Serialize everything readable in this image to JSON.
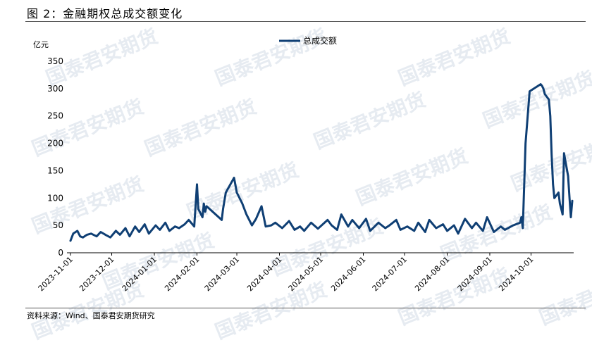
{
  "figure": {
    "title": "图 2：金融期权总成交额变化",
    "source": "资料来源：Wind、国泰君安期货研究"
  },
  "watermark": {
    "text": "国泰君安期货"
  },
  "colors": {
    "line": "#0f3f74",
    "axis": "#000000",
    "rule": "#555555",
    "watermark": "#e6ebf1"
  },
  "chart_data": {
    "type": "line",
    "ylabel": "亿元",
    "ylim": [
      0,
      350
    ],
    "yticks": [
      0,
      50,
      100,
      150,
      200,
      250,
      300,
      350
    ],
    "grid": false,
    "legend_position": "top-center",
    "x_tick_labels": [
      "2023-11-01",
      "2023-12-01",
      "2024-01-01",
      "2024-02-01",
      "2024-03-01",
      "2024-04-01",
      "2024-05-01",
      "2024-06-01",
      "2024-07-01",
      "2024-08-01",
      "2024-09-01",
      "2024-10-01"
    ],
    "series": [
      {
        "name": "总成交额",
        "x": [
          "2023-11-01",
          "2023-11-03",
          "2023-11-06",
          "2023-11-08",
          "2023-11-10",
          "2023-11-13",
          "2023-11-16",
          "2023-11-20",
          "2023-11-23",
          "2023-11-27",
          "2023-11-30",
          "2023-12-04",
          "2023-12-07",
          "2023-12-11",
          "2023-12-14",
          "2023-12-18",
          "2023-12-21",
          "2023-12-25",
          "2023-12-28",
          "2024-01-02",
          "2024-01-05",
          "2024-01-09",
          "2024-01-12",
          "2024-01-16",
          "2024-01-19",
          "2024-01-23",
          "2024-01-26",
          "2024-01-30",
          "2024-02-01",
          "2024-02-02",
          "2024-02-05",
          "2024-02-06",
          "2024-02-07",
          "2024-02-08",
          "2024-02-19",
          "2024-02-20",
          "2024-02-22",
          "2024-02-26",
          "2024-02-28",
          "2024-03-01",
          "2024-03-05",
          "2024-03-08",
          "2024-03-12",
          "2024-03-15",
          "2024-03-19",
          "2024-03-22",
          "2024-03-26",
          "2024-03-29",
          "2024-04-03",
          "2024-04-08",
          "2024-04-12",
          "2024-04-16",
          "2024-04-19",
          "2024-04-24",
          "2024-04-29",
          "2024-05-06",
          "2024-05-09",
          "2024-05-13",
          "2024-05-16",
          "2024-05-21",
          "2024-05-24",
          "2024-05-29",
          "2024-06-03",
          "2024-06-06",
          "2024-06-12",
          "2024-06-17",
          "2024-06-20",
          "2024-06-25",
          "2024-06-28",
          "2024-07-03",
          "2024-07-08",
          "2024-07-11",
          "2024-07-16",
          "2024-07-19",
          "2024-07-24",
          "2024-07-29",
          "2024-08-01",
          "2024-08-06",
          "2024-08-09",
          "2024-08-14",
          "2024-08-19",
          "2024-08-22",
          "2024-08-27",
          "2024-08-30",
          "2024-09-04",
          "2024-09-09",
          "2024-09-12",
          "2024-09-18",
          "2024-09-23",
          "2024-09-24",
          "2024-09-25",
          "2024-09-26",
          "2024-09-27",
          "2024-09-30",
          "2024-10-08",
          "2024-10-09",
          "2024-10-10",
          "2024-10-11",
          "2024-10-14",
          "2024-10-15",
          "2024-10-16",
          "2024-10-17",
          "2024-10-18",
          "2024-10-21",
          "2024-10-22",
          "2024-10-23",
          "2024-10-24",
          "2024-10-25",
          "2024-10-28",
          "2024-10-29",
          "2024-10-30",
          "2024-10-31"
        ],
        "values": [
          22,
          35,
          40,
          30,
          28,
          33,
          35,
          30,
          38,
          32,
          28,
          40,
          33,
          45,
          30,
          48,
          38,
          52,
          35,
          50,
          42,
          55,
          40,
          48,
          45,
          52,
          60,
          48,
          125,
          80,
          65,
          90,
          75,
          85,
          60,
          80,
          110,
          128,
          137,
          110,
          90,
          70,
          50,
          62,
          85,
          48,
          50,
          55,
          45,
          58,
          42,
          48,
          40,
          55,
          44,
          60,
          50,
          42,
          70,
          48,
          60,
          45,
          62,
          40,
          55,
          45,
          50,
          60,
          42,
          48,
          40,
          55,
          38,
          60,
          45,
          52,
          40,
          50,
          35,
          62,
          45,
          55,
          40,
          65,
          38,
          48,
          42,
          50,
          55,
          65,
          45,
          120,
          200,
          295,
          308,
          305,
          300,
          290,
          280,
          250,
          180,
          125,
          100,
          110,
          90,
          80,
          70,
          182,
          140,
          100,
          65,
          95
        ]
      }
    ]
  }
}
